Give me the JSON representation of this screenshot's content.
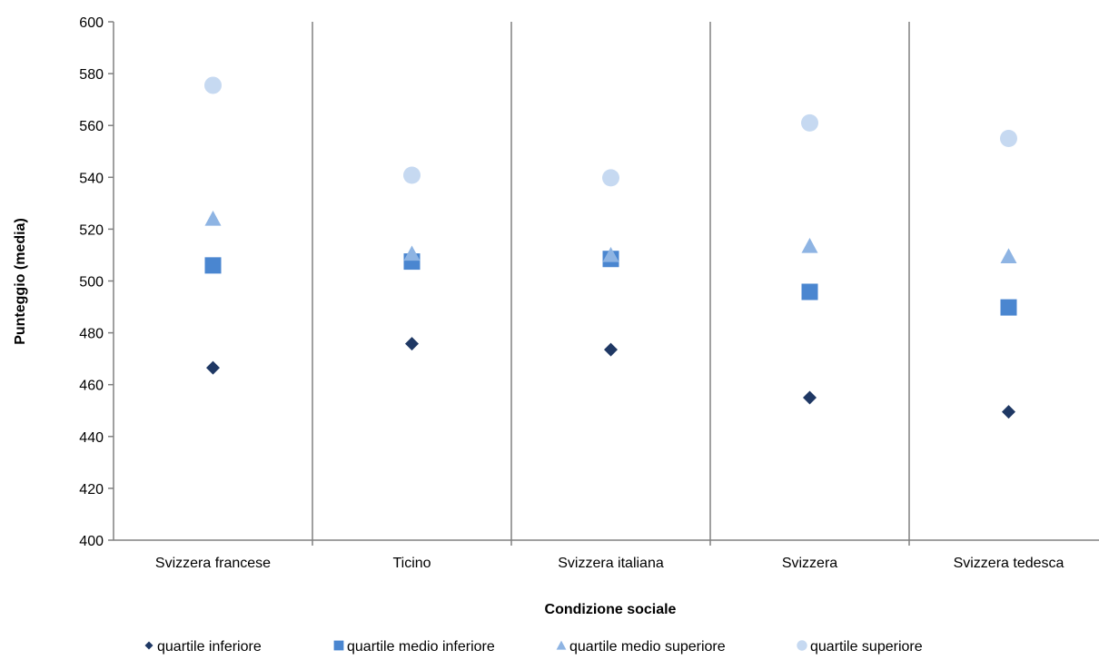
{
  "chart_data": {
    "type": "scatter",
    "xlabel": "Condizione sociale",
    "ylabel": "Punteggio (media)",
    "ylim": [
      400,
      600
    ],
    "yticks": [
      400,
      420,
      440,
      460,
      480,
      500,
      520,
      540,
      560,
      580,
      600
    ],
    "categories": [
      "Svizzera francese",
      "Ticino",
      "Svizzera italiana",
      "Svizzera",
      "Svizzera tedesca"
    ],
    "grid": "vertical category separators",
    "legend_position": "bottom",
    "series": [
      {
        "name": "quartile inferiore",
        "marker": "diamond",
        "color": "#1f3864",
        "values": [
          466.5,
          475.8,
          473.5,
          455.0,
          449.5
        ]
      },
      {
        "name": "quartile medio inferiore",
        "marker": "square",
        "color": "#4a86d0",
        "values": [
          506.0,
          507.5,
          508.5,
          495.8,
          489.8
        ]
      },
      {
        "name": "quartile medio superiore",
        "marker": "triangle",
        "color": "#8eb4e3",
        "values": [
          524.0,
          510.5,
          510.0,
          513.5,
          509.5
        ]
      },
      {
        "name": "quartile superiore",
        "marker": "circle",
        "color": "#c6d9f1",
        "values": [
          575.5,
          540.8,
          539.8,
          561.0,
          555.0
        ]
      }
    ]
  }
}
